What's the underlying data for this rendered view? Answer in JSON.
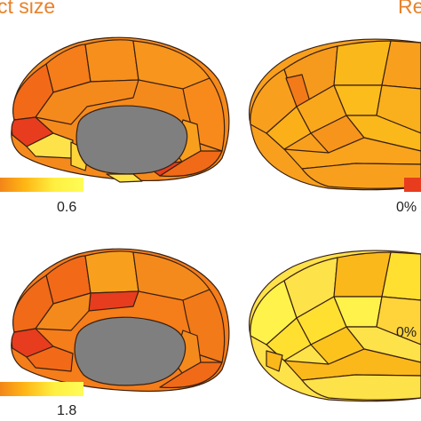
{
  "header": {
    "left_title": "ct size",
    "right_title": "Re"
  },
  "colorbars": {
    "top_left_max": "0.6",
    "top_right_min": "0%",
    "bottom_left_max": "1.8",
    "bottom_right_min": "0%"
  },
  "colors": {
    "title": "#e8822a",
    "medial_wall": "#7f7f7f",
    "outline": "#3a2010",
    "scale": [
      "#e83c1e",
      "#f26a18",
      "#f5901c",
      "#fbb81a",
      "#ffe030",
      "#fff24a"
    ]
  }
}
